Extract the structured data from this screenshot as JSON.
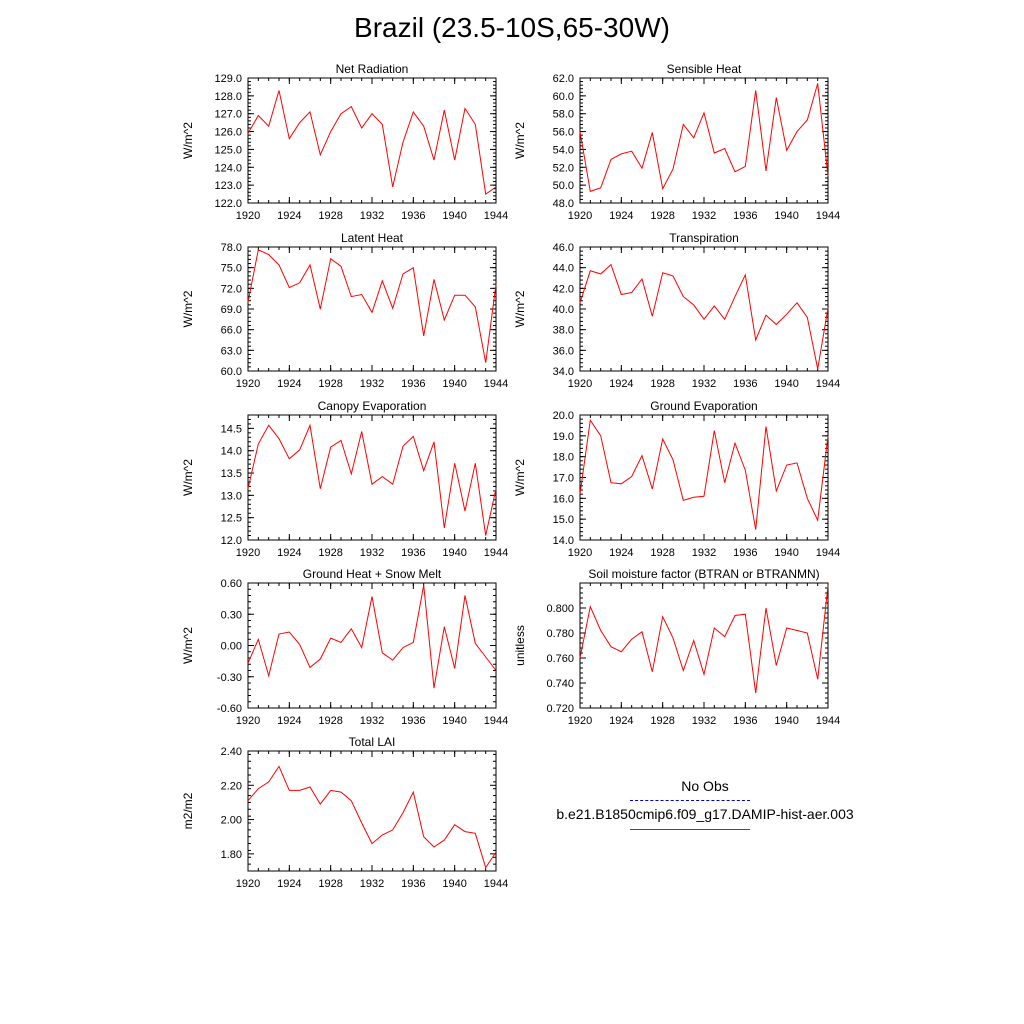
{
  "figure_title": "Brazil (23.5-10S,65-30W)",
  "legend": {
    "obs_label": "No Obs",
    "model_label": "b.e21.B1850cmip6.f09_g17.DAMIP-hist-aer.003",
    "obs_color": "#0000cc",
    "model_color": "#ff0000"
  },
  "chart_data": [
    {
      "type": "line",
      "title": "Net Radiation",
      "ylabel": "W/m^2",
      "xlabel": "",
      "xlim": [
        1920,
        1944
      ],
      "ylim": [
        122.0,
        129.0
      ],
      "xticks": [
        "1920",
        "1924",
        "1928",
        "1932",
        "1936",
        "1940",
        "1944"
      ],
      "yticks": [
        "122.0",
        "123.0",
        "124.0",
        "125.0",
        "126.0",
        "127.0",
        "128.0",
        "129.0"
      ],
      "series": [
        {
          "x": [
            1920,
            1921,
            1922,
            1923,
            1924,
            1925,
            1926,
            1927,
            1928,
            1929,
            1930,
            1931,
            1932,
            1933,
            1934,
            1935,
            1936,
            1937,
            1938,
            1939,
            1940,
            1941,
            1942,
            1943,
            1944
          ],
          "values": [
            125.9,
            126.9,
            126.3,
            128.3,
            125.6,
            126.5,
            127.1,
            124.7,
            126.0,
            127.0,
            127.4,
            126.2,
            127.0,
            126.4,
            122.9,
            125.4,
            127.1,
            126.3,
            124.4,
            127.2,
            124.4,
            127.3,
            126.4,
            122.5,
            122.9
          ]
        }
      ]
    },
    {
      "type": "line",
      "title": "Sensible Heat",
      "ylabel": "W/m^2",
      "xlabel": "",
      "xlim": [
        1920,
        1944
      ],
      "ylim": [
        48.0,
        62.0
      ],
      "xticks": [
        "1920",
        "1924",
        "1928",
        "1932",
        "1936",
        "1940",
        "1944"
      ],
      "yticks": [
        "48.0",
        "50.0",
        "52.0",
        "54.0",
        "56.0",
        "58.0",
        "60.0",
        "62.0"
      ],
      "series": [
        {
          "x": [
            1920,
            1921,
            1922,
            1923,
            1924,
            1925,
            1926,
            1927,
            1928,
            1929,
            1930,
            1931,
            1932,
            1933,
            1934,
            1935,
            1936,
            1937,
            1938,
            1939,
            1940,
            1941,
            1942,
            1943,
            1944
          ],
          "values": [
            56.0,
            49.3,
            49.7,
            52.9,
            53.5,
            53.8,
            51.9,
            55.9,
            49.6,
            51.8,
            56.8,
            55.3,
            58.1,
            53.6,
            54.1,
            51.5,
            52.1,
            60.6,
            51.6,
            59.8,
            53.9,
            56.0,
            57.3,
            61.4,
            51.0
          ]
        }
      ]
    },
    {
      "type": "line",
      "title": "Latent Heat",
      "ylabel": "W/m^2",
      "xlabel": "",
      "xlim": [
        1920,
        1944
      ],
      "ylim": [
        60.0,
        78.0
      ],
      "xticks": [
        "1920",
        "1924",
        "1928",
        "1932",
        "1936",
        "1940",
        "1944"
      ],
      "yticks": [
        "60.0",
        "63.0",
        "66.0",
        "69.0",
        "72.0",
        "75.0",
        "78.0"
      ],
      "series": [
        {
          "x": [
            1920,
            1921,
            1922,
            1923,
            1924,
            1925,
            1926,
            1927,
            1928,
            1929,
            1930,
            1931,
            1932,
            1933,
            1934,
            1935,
            1936,
            1937,
            1938,
            1939,
            1940,
            1941,
            1942,
            1943,
            1944
          ],
          "values": [
            70.0,
            77.6,
            76.9,
            75.4,
            72.1,
            72.8,
            75.4,
            69.0,
            76.3,
            75.2,
            70.8,
            71.1,
            68.5,
            73.1,
            69.1,
            74.1,
            75.0,
            65.1,
            73.3,
            67.4,
            71.0,
            71.0,
            69.3,
            61.2,
            72.6
          ]
        }
      ]
    },
    {
      "type": "line",
      "title": "Transpiration",
      "ylabel": "W/m^2",
      "xlabel": "",
      "xlim": [
        1920,
        1944
      ],
      "ylim": [
        34.0,
        46.0
      ],
      "xticks": [
        "1920",
        "1924",
        "1928",
        "1932",
        "1936",
        "1940",
        "1944"
      ],
      "yticks": [
        "34.0",
        "36.0",
        "38.0",
        "40.0",
        "42.0",
        "44.0",
        "46.0"
      ],
      "series": [
        {
          "x": [
            1920,
            1921,
            1922,
            1923,
            1924,
            1925,
            1926,
            1927,
            1928,
            1929,
            1930,
            1931,
            1932,
            1933,
            1934,
            1935,
            1936,
            1937,
            1938,
            1939,
            1940,
            1941,
            1942,
            1943,
            1944
          ],
          "values": [
            40.6,
            43.7,
            43.4,
            44.3,
            41.4,
            41.6,
            42.9,
            39.3,
            43.5,
            43.2,
            41.2,
            40.4,
            39.0,
            40.3,
            39.0,
            41.2,
            43.3,
            37.0,
            39.4,
            38.5,
            39.5,
            40.6,
            39.2,
            34.2,
            40.1
          ]
        }
      ]
    },
    {
      "type": "line",
      "title": "Canopy Evaporation",
      "ylabel": "W/m^2",
      "xlabel": "",
      "xlim": [
        1920,
        1944
      ],
      "ylim": [
        12.0,
        14.8
      ],
      "xticks": [
        "1920",
        "1924",
        "1928",
        "1932",
        "1936",
        "1940",
        "1944"
      ],
      "yticks": [
        "12.0",
        "12.5",
        "13.0",
        "13.5",
        "14.0",
        "14.5"
      ],
      "series": [
        {
          "x": [
            1920,
            1921,
            1922,
            1923,
            1924,
            1925,
            1926,
            1927,
            1928,
            1929,
            1930,
            1931,
            1932,
            1933,
            1934,
            1935,
            1936,
            1937,
            1938,
            1939,
            1940,
            1941,
            1942,
            1943,
            1944
          ],
          "values": [
            13.15,
            14.15,
            14.57,
            14.27,
            13.82,
            14.02,
            14.57,
            13.15,
            14.08,
            14.23,
            13.48,
            14.43,
            13.25,
            13.42,
            13.25,
            14.1,
            14.32,
            13.55,
            14.2,
            12.27,
            13.72,
            12.65,
            13.72,
            12.1,
            13.15
          ]
        }
      ]
    },
    {
      "type": "line",
      "title": "Ground Evaporation",
      "ylabel": "W/m^2",
      "xlabel": "",
      "xlim": [
        1920,
        1944
      ],
      "ylim": [
        14.0,
        20.0
      ],
      "xticks": [
        "1920",
        "1924",
        "1928",
        "1932",
        "1936",
        "1940",
        "1944"
      ],
      "yticks": [
        "14.0",
        "15.0",
        "16.0",
        "17.0",
        "18.0",
        "19.0",
        "20.0"
      ],
      "series": [
        {
          "x": [
            1920,
            1921,
            1922,
            1923,
            1924,
            1925,
            1926,
            1927,
            1928,
            1929,
            1930,
            1931,
            1932,
            1933,
            1934,
            1935,
            1936,
            1937,
            1938,
            1939,
            1940,
            1941,
            1942,
            1943,
            1944
          ],
          "values": [
            16.2,
            19.75,
            19.0,
            16.75,
            16.7,
            17.05,
            18.05,
            16.45,
            18.85,
            17.85,
            15.9,
            16.05,
            16.1,
            19.25,
            16.75,
            18.65,
            17.35,
            14.5,
            19.45,
            16.35,
            17.6,
            17.7,
            16.0,
            14.95,
            19.0
          ]
        }
      ]
    },
    {
      "type": "line",
      "title": "Ground Heat + Snow Melt",
      "ylabel": "W/m^2",
      "xlabel": "",
      "xlim": [
        1920,
        1944
      ],
      "ylim": [
        -0.6,
        0.6
      ],
      "xticks": [
        "1920",
        "1924",
        "1928",
        "1932",
        "1936",
        "1940",
        "1944"
      ],
      "yticks": [
        "-0.60",
        "-0.30",
        "0.00",
        "0.30",
        "0.60"
      ],
      "series": [
        {
          "x": [
            1920,
            1921,
            1922,
            1923,
            1924,
            1925,
            1926,
            1927,
            1928,
            1929,
            1930,
            1931,
            1932,
            1933,
            1934,
            1935,
            1936,
            1937,
            1938,
            1939,
            1940,
            1941,
            1942,
            1943,
            1944
          ],
          "values": [
            -0.17,
            0.06,
            -0.29,
            0.11,
            0.13,
            0.01,
            -0.21,
            -0.13,
            0.07,
            0.03,
            0.16,
            -0.02,
            0.47,
            -0.07,
            -0.14,
            -0.02,
            0.03,
            0.58,
            -0.41,
            0.18,
            -0.22,
            0.48,
            0.02,
            -0.11,
            -0.24
          ]
        }
      ]
    },
    {
      "type": "line",
      "title": "Soil moisture factor (BTRAN or BTRANMN)",
      "ylabel": "unitless",
      "xlabel": "",
      "xlim": [
        1920,
        1944
      ],
      "ylim": [
        0.72,
        0.82
      ],
      "xticks": [
        "1920",
        "1924",
        "1928",
        "1932",
        "1936",
        "1940",
        "1944"
      ],
      "yticks": [
        "0.720",
        "0.740",
        "0.760",
        "0.780",
        "0.800"
      ],
      "series": [
        {
          "x": [
            1920,
            1921,
            1922,
            1923,
            1924,
            1925,
            1926,
            1927,
            1928,
            1929,
            1930,
            1931,
            1932,
            1933,
            1934,
            1935,
            1936,
            1937,
            1938,
            1939,
            1940,
            1941,
            1942,
            1943,
            1944
          ],
          "values": [
            0.76,
            0.801,
            0.782,
            0.769,
            0.765,
            0.775,
            0.781,
            0.749,
            0.793,
            0.776,
            0.75,
            0.774,
            0.747,
            0.784,
            0.777,
            0.794,
            0.795,
            0.732,
            0.8,
            0.754,
            0.784,
            0.782,
            0.78,
            0.743,
            0.818
          ]
        }
      ]
    },
    {
      "type": "line",
      "title": "Total LAI",
      "ylabel": "m2/m2",
      "xlabel": "",
      "xlim": [
        1920,
        1944
      ],
      "ylim": [
        1.7,
        2.4
      ],
      "xticks": [
        "1920",
        "1924",
        "1928",
        "1932",
        "1936",
        "1940",
        "1944"
      ],
      "yticks": [
        "1.80",
        "2.00",
        "2.20",
        "2.40"
      ],
      "series": [
        {
          "x": [
            1920,
            1921,
            1922,
            1923,
            1924,
            1925,
            1926,
            1927,
            1928,
            1929,
            1930,
            1931,
            1932,
            1933,
            1934,
            1935,
            1936,
            1937,
            1938,
            1939,
            1940,
            1941,
            1942,
            1943,
            1944
          ],
          "values": [
            2.11,
            2.18,
            2.22,
            2.31,
            2.17,
            2.17,
            2.19,
            2.09,
            2.17,
            2.16,
            2.11,
            1.98,
            1.86,
            1.91,
            1.94,
            2.04,
            2.16,
            1.9,
            1.84,
            1.88,
            1.97,
            1.93,
            1.92,
            1.72,
            1.81
          ]
        }
      ]
    }
  ]
}
